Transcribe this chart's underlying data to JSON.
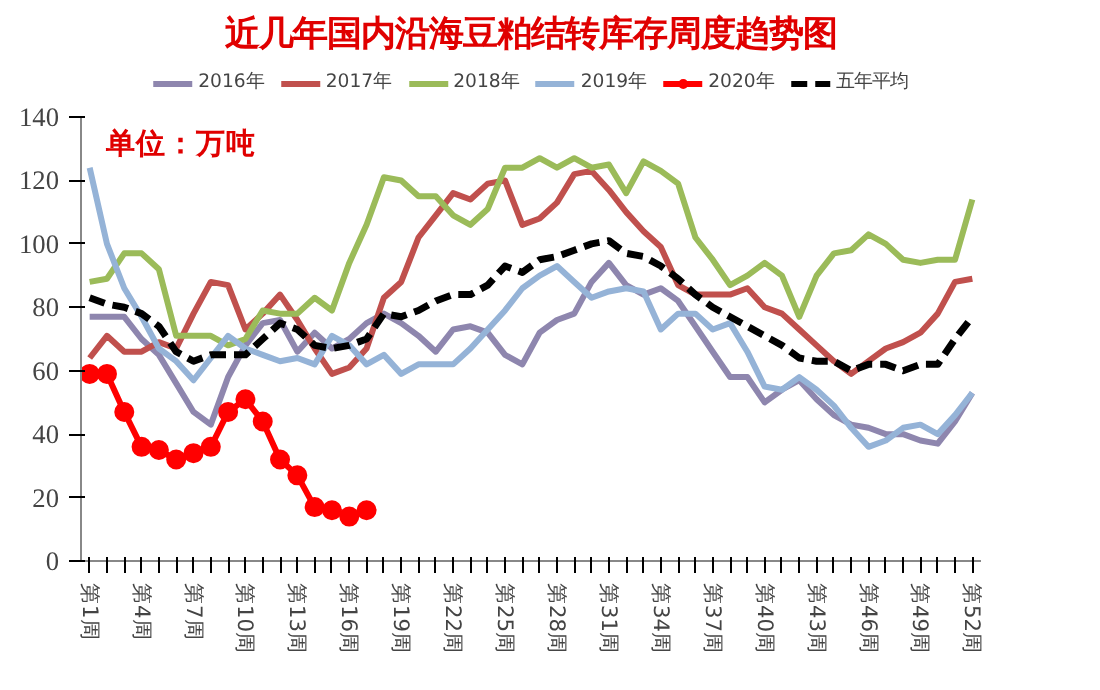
{
  "chart_data": {
    "type": "line",
    "title": "近几年国内沿海豆粕结转库存周度趋势图",
    "annotations": [
      "单位：万吨"
    ],
    "categories": [
      "第1周",
      null,
      null,
      "第4周",
      null,
      null,
      "第7周",
      null,
      null,
      "第10周",
      null,
      null,
      "第13周",
      null,
      null,
      "第16周",
      null,
      null,
      "第19周",
      null,
      null,
      "第22周",
      null,
      null,
      "第25周",
      null,
      null,
      "第28周",
      null,
      null,
      "第31周",
      null,
      null,
      "第34周",
      null,
      null,
      "第37周",
      null,
      null,
      "第40周",
      null,
      null,
      "第43周",
      null,
      null,
      "第46周",
      null,
      null,
      "第49周",
      null,
      null,
      "第52周"
    ],
    "ylim": [
      0,
      140
    ],
    "yticks": [
      0,
      20,
      40,
      60,
      80,
      100,
      120,
      140
    ],
    "grid": false,
    "legend": "top",
    "line_style": "solid",
    "marker": "none",
    "series": [
      {
        "name": "2016年",
        "color": "#8e86ae",
        "values": [
          77,
          77,
          77,
          70,
          65,
          56,
          47,
          43,
          58,
          68,
          75,
          76,
          66,
          72,
          67,
          70,
          75,
          78,
          75,
          71,
          66,
          73,
          74,
          72,
          65,
          62,
          72,
          76,
          78,
          88,
          94,
          87,
          84,
          86,
          82,
          74,
          66,
          58,
          58,
          50,
          54,
          57,
          51,
          46,
          43,
          42,
          40,
          40,
          38,
          37,
          44,
          53
        ]
      },
      {
        "name": "2017年",
        "color": "#c0504d",
        "values": [
          64,
          71,
          66,
          66,
          69,
          67,
          78,
          88,
          87,
          73,
          78,
          84,
          76,
          67,
          59,
          61,
          67,
          83,
          88,
          102,
          109,
          116,
          114,
          119,
          120,
          106,
          108,
          113,
          122,
          123,
          117,
          110,
          104,
          99,
          87,
          84,
          84,
          84,
          86,
          80,
          78,
          73,
          68,
          63,
          59,
          63,
          67,
          69,
          72,
          78,
          88,
          89
        ]
      },
      {
        "name": "2018年",
        "color": "#9bbb59",
        "values": [
          88,
          89,
          97,
          97,
          92,
          71,
          71,
          71,
          68,
          70,
          79,
          78,
          78,
          83,
          79,
          94,
          106,
          121,
          120,
          115,
          115,
          109,
          106,
          111,
          124,
          124,
          127,
          124,
          127,
          124,
          125,
          116,
          126,
          123,
          119,
          102,
          95,
          87,
          90,
          94,
          90,
          77,
          90,
          97,
          98,
          103,
          100,
          95,
          94,
          95,
          95,
          114
        ]
      },
      {
        "name": "2019年",
        "color": "#95b3d7",
        "values": [
          124,
          100,
          86,
          77,
          67,
          63,
          57,
          64,
          71,
          67,
          65,
          63,
          64,
          62,
          71,
          68,
          62,
          65,
          59,
          62,
          62,
          62,
          67,
          73,
          79,
          86,
          90,
          93,
          88,
          83,
          85,
          86,
          85,
          73,
          78,
          78,
          73,
          75,
          66,
          55,
          54,
          58,
          54,
          49,
          42,
          36,
          38,
          42,
          43,
          40,
          46,
          53
        ]
      },
      {
        "name": "2020年",
        "color": "#ff0000",
        "marker": "circle",
        "values": [
          59,
          59,
          47,
          36,
          35,
          32,
          34,
          36,
          47,
          51,
          44,
          32,
          27,
          17,
          16,
          14,
          16,
          null,
          null,
          null,
          null,
          null,
          null,
          null,
          null,
          null,
          null,
          null,
          null,
          null,
          null,
          null,
          null,
          null,
          null,
          null,
          null,
          null,
          null,
          null,
          null,
          null,
          null,
          null,
          null,
          null,
          null,
          null,
          null,
          null,
          null,
          null
        ]
      },
      {
        "name": "五年平均",
        "color": "#000000",
        "line_style": "dashed",
        "values": [
          83,
          81,
          80,
          78,
          74,
          66,
          63,
          65,
          65,
          65,
          70,
          75,
          73,
          68,
          67,
          68,
          70,
          78,
          77,
          79,
          82,
          84,
          84,
          87,
          93,
          91,
          95,
          96,
          98,
          100,
          101,
          97,
          96,
          93,
          89,
          84,
          80,
          77,
          74,
          71,
          68,
          64,
          63,
          63,
          60,
          62,
          62,
          60,
          62,
          62,
          70,
          77
        ]
      }
    ]
  }
}
